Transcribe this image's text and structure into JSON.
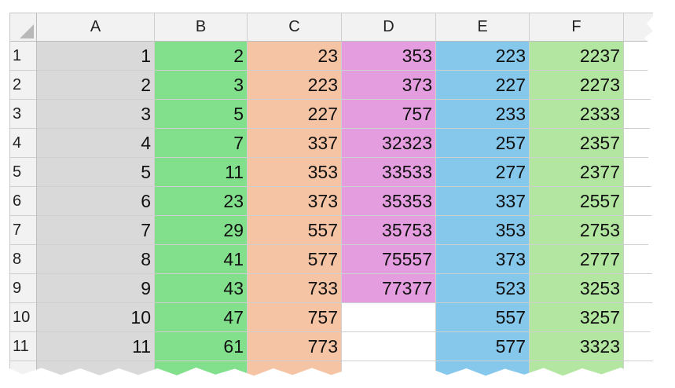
{
  "columns": [
    "A",
    "B",
    "C",
    "D",
    "E",
    "F"
  ],
  "column_colors": {
    "A": "#d9d9d9",
    "B": "#82e08c",
    "C": "#f5c4a4",
    "D": "#e49ee0",
    "E": "#86c7ec",
    "F": "#b3e6a0"
  },
  "rows": [
    {
      "num": "1",
      "A": "1",
      "B": "2",
      "C": "23",
      "D": "353",
      "E": "223",
      "F": "2237"
    },
    {
      "num": "2",
      "A": "2",
      "B": "3",
      "C": "223",
      "D": "373",
      "E": "227",
      "F": "2273"
    },
    {
      "num": "3",
      "A": "3",
      "B": "5",
      "C": "227",
      "D": "757",
      "E": "233",
      "F": "2333"
    },
    {
      "num": "4",
      "A": "4",
      "B": "7",
      "C": "337",
      "D": "32323",
      "E": "257",
      "F": "2357"
    },
    {
      "num": "5",
      "A": "5",
      "B": "11",
      "C": "353",
      "D": "33533",
      "E": "277",
      "F": "2377"
    },
    {
      "num": "6",
      "A": "6",
      "B": "23",
      "C": "373",
      "D": "35353",
      "E": "337",
      "F": "2557"
    },
    {
      "num": "7",
      "A": "7",
      "B": "29",
      "C": "557",
      "D": "35753",
      "E": "353",
      "F": "2753"
    },
    {
      "num": "8",
      "A": "8",
      "B": "41",
      "C": "577",
      "D": "75557",
      "E": "373",
      "F": "2777"
    },
    {
      "num": "9",
      "A": "9",
      "B": "43",
      "C": "733",
      "D": "77377",
      "E": "523",
      "F": "3253"
    },
    {
      "num": "10",
      "A": "10",
      "B": "47",
      "C": "757",
      "D": "",
      "E": "557",
      "F": "3257"
    },
    {
      "num": "11",
      "A": "11",
      "B": "61",
      "C": "773",
      "D": "",
      "E": "577",
      "F": "3323"
    },
    {
      "num": "",
      "A": "",
      "B": "",
      "C": "",
      "D": "",
      "E": "",
      "F": ""
    }
  ]
}
